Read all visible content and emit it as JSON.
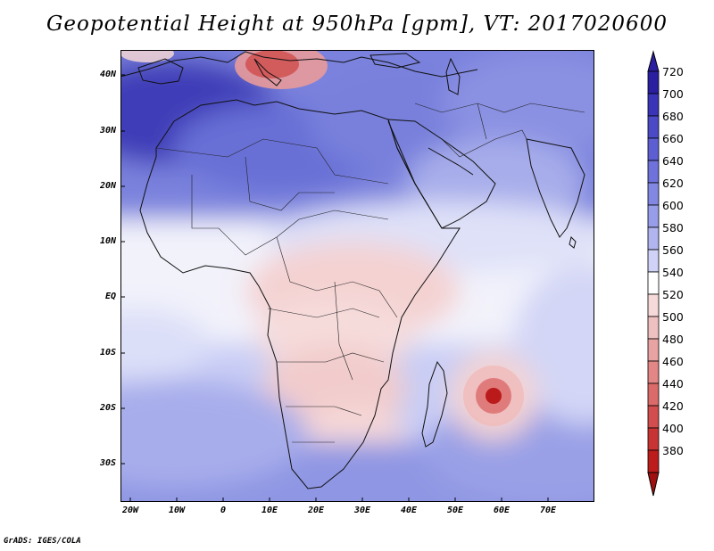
{
  "title": "Geopotential Height at 950hPa [gpm], VT: 2017020600",
  "credit": "GrADS: IGES/COLA",
  "map": {
    "variable": "Geopotential Height",
    "level": "950hPa",
    "units": "gpm",
    "valid_time": "2017020600",
    "lon_range": [
      -22,
      80
    ],
    "lat_range": [
      -37,
      45
    ],
    "x_ticks": [
      {
        "label": "20W",
        "lon": -20
      },
      {
        "label": "10W",
        "lon": -10
      },
      {
        "label": "0",
        "lon": 0
      },
      {
        "label": "10E",
        "lon": 10
      },
      {
        "label": "20E",
        "lon": 20
      },
      {
        "label": "30E",
        "lon": 30
      },
      {
        "label": "40E",
        "lon": 40
      },
      {
        "label": "50E",
        "lon": 50
      },
      {
        "label": "60E",
        "lon": 60
      },
      {
        "label": "70E",
        "lon": 70
      }
    ],
    "y_ticks": [
      {
        "label": "40N",
        "lat": 40
      },
      {
        "label": "30N",
        "lat": 30
      },
      {
        "label": "20N",
        "lat": 20
      },
      {
        "label": "10N",
        "lat": 10
      },
      {
        "label": "EQ",
        "lat": 0
      },
      {
        "label": "10S",
        "lat": -10
      },
      {
        "label": "20S",
        "lat": -20
      },
      {
        "label": "30S",
        "lat": -30
      }
    ]
  },
  "colorbar": {
    "levels": [
      "720",
      "700",
      "680",
      "660",
      "640",
      "620",
      "600",
      "580",
      "560",
      "540",
      "520",
      "500",
      "480",
      "460",
      "440",
      "420",
      "400",
      "380"
    ],
    "colors": [
      "#2a1fa0",
      "#3a34b8",
      "#4b49c6",
      "#5d5ed2",
      "#6f72da",
      "#8288e2",
      "#979de8",
      "#b0b5ef",
      "#d0d3f7",
      "#ffffff",
      "#f6d9d9",
      "#efc0c0",
      "#e8a3a3",
      "#e28686",
      "#db6a6a",
      "#d24d4d",
      "#c83434",
      "#bd1c1c",
      "#a01010"
    ]
  }
}
